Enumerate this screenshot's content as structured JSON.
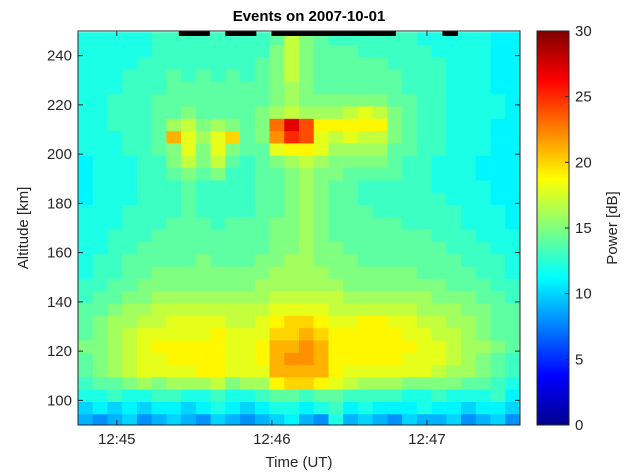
{
  "chart_data": {
    "type": "heatmap",
    "title": "Events on 2007-10-01",
    "xlabel": "Time (UT)",
    "ylabel": "Altitude [km]",
    "colorbar_label": "Power [dB]",
    "colormap": "jet",
    "x_ticks": [
      "12:45",
      "12:46",
      "12:47"
    ],
    "y_ticks": [
      100,
      120,
      140,
      160,
      180,
      200,
      220,
      240
    ],
    "colorbar_ticks": [
      0,
      5,
      10,
      15,
      20,
      25,
      30
    ],
    "xlim": [
      "12:44:45",
      "12:47:36"
    ],
    "ylim": [
      90,
      250
    ],
    "clim": [
      0,
      30
    ],
    "grid": false,
    "n_time_bins": 30,
    "altitude_bins_km": [
      92,
      97,
      102,
      107,
      112,
      117,
      122,
      127,
      132,
      137,
      142,
      147,
      152,
      157,
      162,
      167,
      172,
      177,
      182,
      187,
      192,
      197,
      202,
      207,
      212,
      217,
      222,
      227,
      232,
      237,
      242,
      247
    ],
    "events": [
      {
        "start": "12:45:24",
        "end": "12:45:36"
      },
      {
        "start": "12:45:42",
        "end": "12:45:54"
      },
      {
        "start": "12:46:00",
        "end": "12:46:48"
      },
      {
        "start": "12:47:06",
        "end": "12:47:12"
      }
    ],
    "values_dB": [
      [
        9,
        8,
        9,
        10,
        8,
        9,
        10,
        9,
        8,
        10,
        9,
        8,
        9,
        10,
        11,
        9,
        8,
        12,
        9,
        10,
        9,
        8,
        10,
        9,
        9,
        10,
        8,
        9,
        10,
        8
      ],
      [
        10,
        11,
        10,
        11,
        10,
        11,
        11,
        10,
        11,
        12,
        11,
        10,
        11,
        12,
        12,
        11,
        12,
        13,
        11,
        12,
        11,
        11,
        11,
        12,
        11,
        11,
        10,
        11,
        11,
        10
      ],
      [
        12,
        12,
        13,
        12,
        12,
        13,
        13,
        12,
        12,
        13,
        12,
        12,
        13,
        14,
        14,
        13,
        14,
        14,
        13,
        13,
        13,
        13,
        12,
        12,
        13,
        12,
        12,
        12,
        13,
        11
      ],
      [
        13,
        14,
        14,
        15,
        16,
        15,
        16,
        16,
        16,
        17,
        15,
        16,
        16,
        19,
        20,
        20,
        19,
        18,
        17,
        16,
        16,
        16,
        15,
        15,
        15,
        15,
        14,
        14,
        13,
        12
      ],
      [
        14,
        15,
        16,
        17,
        18,
        18,
        18,
        18,
        19,
        19,
        18,
        18,
        18,
        21,
        21,
        21,
        21,
        19,
        18,
        18,
        18,
        18,
        18,
        18,
        17,
        16,
        16,
        15,
        14,
        13
      ],
      [
        14,
        15,
        16,
        17,
        18,
        18,
        19,
        19,
        19,
        19,
        18,
        18,
        19,
        21,
        22,
        22,
        21,
        19,
        19,
        19,
        19,
        19,
        18,
        18,
        18,
        17,
        16,
        15,
        14,
        13
      ],
      [
        15,
        15,
        16,
        17,
        18,
        19,
        19,
        19,
        19,
        19,
        18,
        18,
        19,
        21,
        21,
        22,
        21,
        19,
        19,
        19,
        19,
        19,
        19,
        18,
        18,
        17,
        16,
        16,
        15,
        14
      ],
      [
        14,
        15,
        16,
        17,
        18,
        18,
        18,
        18,
        18,
        19,
        18,
        18,
        18,
        20,
        20,
        21,
        20,
        19,
        19,
        19,
        19,
        19,
        18,
        18,
        17,
        17,
        16,
        15,
        14,
        14
      ],
      [
        14,
        15,
        16,
        16,
        17,
        17,
        18,
        18,
        18,
        18,
        17,
        17,
        18,
        19,
        20,
        20,
        19,
        18,
        18,
        19,
        19,
        18,
        18,
        17,
        17,
        16,
        16,
        15,
        14,
        14
      ],
      [
        14,
        14,
        15,
        16,
        16,
        17,
        17,
        17,
        17,
        17,
        17,
        17,
        17,
        18,
        18,
        18,
        18,
        17,
        17,
        17,
        17,
        17,
        17,
        16,
        16,
        16,
        15,
        15,
        14,
        14
      ],
      [
        13,
        14,
        14,
        15,
        15,
        16,
        16,
        16,
        16,
        16,
        16,
        16,
        16,
        17,
        17,
        17,
        17,
        17,
        16,
        16,
        16,
        16,
        16,
        16,
        15,
        15,
        15,
        14,
        14,
        13
      ],
      [
        13,
        13,
        14,
        14,
        15,
        15,
        15,
        15,
        15,
        15,
        15,
        15,
        16,
        16,
        16,
        16,
        16,
        16,
        15,
        15,
        15,
        15,
        15,
        15,
        15,
        14,
        14,
        14,
        13,
        13
      ],
      [
        12,
        13,
        13,
        14,
        14,
        15,
        15,
        15,
        15,
        15,
        15,
        15,
        15,
        16,
        16,
        16,
        16,
        15,
        15,
        15,
        15,
        15,
        15,
        14,
        14,
        14,
        14,
        13,
        13,
        12
      ],
      [
        12,
        13,
        13,
        14,
        14,
        14,
        14,
        14,
        15,
        14,
        14,
        14,
        15,
        15,
        16,
        16,
        15,
        15,
        15,
        14,
        14,
        14,
        14,
        14,
        14,
        14,
        13,
        13,
        13,
        12
      ],
      [
        12,
        12,
        13,
        13,
        14,
        14,
        14,
        14,
        14,
        14,
        14,
        14,
        14,
        15,
        15,
        16,
        15,
        15,
        14,
        14,
        14,
        14,
        14,
        14,
        14,
        13,
        13,
        13,
        12,
        12
      ],
      [
        12,
        12,
        13,
        13,
        13,
        14,
        14,
        14,
        14,
        14,
        14,
        14,
        14,
        15,
        15,
        16,
        15,
        14,
        14,
        14,
        14,
        14,
        14,
        14,
        13,
        13,
        13,
        12,
        12,
        12
      ],
      [
        12,
        12,
        12,
        13,
        13,
        13,
        14,
        14,
        14,
        13,
        14,
        14,
        14,
        15,
        15,
        16,
        15,
        14,
        14,
        14,
        14,
        14,
        13,
        13,
        13,
        13,
        12,
        12,
        12,
        11
      ],
      [
        12,
        12,
        12,
        13,
        13,
        13,
        13,
        14,
        13,
        13,
        13,
        13,
        14,
        14,
        15,
        16,
        15,
        14,
        14,
        14,
        13,
        13,
        13,
        13,
        13,
        13,
        12,
        12,
        12,
        11
      ],
      [
        11,
        12,
        12,
        12,
        13,
        13,
        13,
        14,
        13,
        13,
        13,
        13,
        14,
        14,
        15,
        16,
        15,
        14,
        14,
        13,
        13,
        13,
        13,
        13,
        13,
        12,
        12,
        12,
        11,
        11
      ],
      [
        11,
        12,
        12,
        12,
        13,
        13,
        13,
        14,
        13,
        13,
        13,
        13,
        14,
        14,
        15,
        16,
        15,
        14,
        14,
        13,
        13,
        13,
        13,
        13,
        12,
        12,
        12,
        12,
        11,
        11
      ],
      [
        11,
        12,
        12,
        12,
        13,
        13,
        14,
        15,
        14,
        15,
        13,
        13,
        14,
        14,
        15,
        16,
        15,
        15,
        14,
        14,
        14,
        14,
        13,
        13,
        12,
        12,
        12,
        11,
        11,
        11
      ],
      [
        11,
        12,
        12,
        12,
        13,
        13,
        15,
        17,
        15,
        17,
        14,
        13,
        14,
        15,
        16,
        17,
        16,
        15,
        15,
        15,
        15,
        14,
        13,
        13,
        12,
        12,
        12,
        11,
        11,
        11
      ],
      [
        12,
        12,
        12,
        13,
        13,
        14,
        15,
        18,
        15,
        18,
        15,
        14,
        14,
        18,
        19,
        19,
        18,
        16,
        16,
        16,
        16,
        14,
        14,
        13,
        13,
        12,
        12,
        12,
        11,
        11
      ],
      [
        12,
        12,
        12,
        13,
        13,
        14,
        21,
        18,
        16,
        18,
        20,
        14,
        15,
        22,
        25,
        24,
        18,
        17,
        18,
        17,
        17,
        15,
        14,
        13,
        13,
        12,
        12,
        12,
        11,
        11
      ],
      [
        12,
        12,
        13,
        13,
        13,
        14,
        16,
        17,
        15,
        16,
        15,
        14,
        15,
        23,
        27,
        24,
        19,
        19,
        19,
        19,
        19,
        15,
        14,
        13,
        13,
        12,
        12,
        12,
        11,
        11
      ],
      [
        12,
        12,
        13,
        13,
        13,
        14,
        14,
        15,
        14,
        14,
        14,
        14,
        15,
        16,
        17,
        16,
        16,
        16,
        17,
        18,
        17,
        15,
        14,
        13,
        13,
        12,
        12,
        12,
        12,
        11
      ],
      [
        12,
        12,
        13,
        13,
        13,
        14,
        14,
        14,
        14,
        14,
        14,
        14,
        14,
        15,
        16,
        15,
        15,
        15,
        15,
        15,
        15,
        14,
        14,
        13,
        13,
        12,
        12,
        12,
        12,
        11
      ],
      [
        12,
        12,
        12,
        13,
        13,
        13,
        14,
        14,
        14,
        14,
        14,
        14,
        14,
        15,
        16,
        15,
        14,
        14,
        14,
        14,
        14,
        14,
        13,
        13,
        13,
        12,
        12,
        12,
        11,
        11
      ],
      [
        12,
        12,
        12,
        13,
        13,
        13,
        14,
        13,
        14,
        13,
        14,
        13,
        14,
        15,
        17,
        15,
        14,
        14,
        14,
        14,
        14,
        14,
        13,
        13,
        13,
        12,
        12,
        12,
        11,
        11
      ],
      [
        12,
        12,
        12,
        12,
        13,
        13,
        13,
        13,
        13,
        13,
        13,
        13,
        14,
        15,
        17,
        15,
        14,
        14,
        14,
        14,
        14,
        13,
        13,
        13,
        13,
        12,
        12,
        12,
        11,
        11
      ],
      [
        12,
        12,
        12,
        12,
        12,
        13,
        13,
        13,
        13,
        13,
        13,
        13,
        13,
        15,
        17,
        15,
        14,
        14,
        14,
        13,
        13,
        13,
        13,
        13,
        12,
        12,
        12,
        12,
        11,
        11
      ],
      [
        12,
        12,
        12,
        12,
        12,
        13,
        13,
        13,
        13,
        13,
        13,
        13,
        13,
        14,
        17,
        15,
        14,
        13,
        13,
        13,
        13,
        13,
        13,
        12,
        12,
        12,
        12,
        12,
        11,
        11
      ]
    ]
  }
}
